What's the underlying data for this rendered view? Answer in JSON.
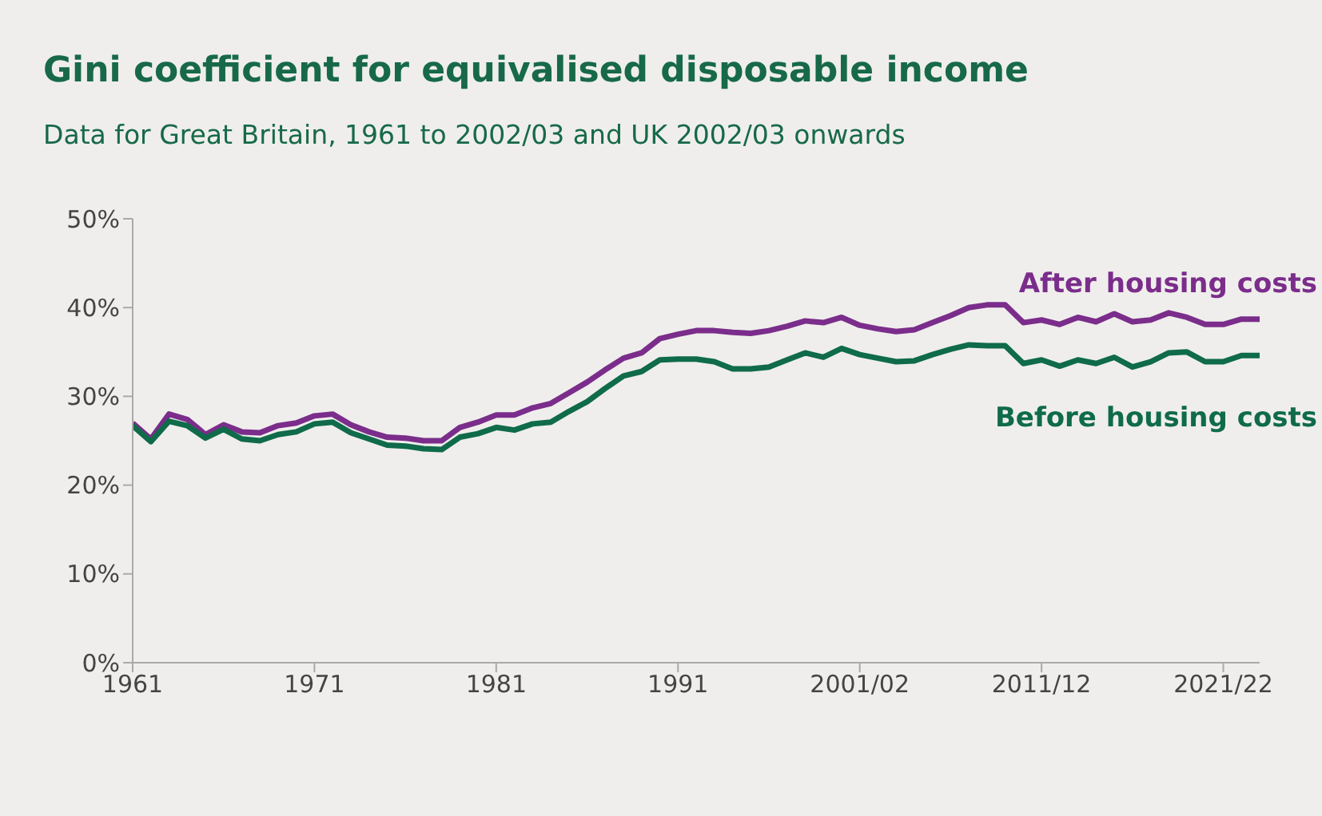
{
  "chart_data": {
    "type": "line",
    "title": "Gini coefficient for equivalised disposable income",
    "subtitle": "Data for Great Britain, 1961 to 2002/03 and UK 2002/03 onwards",
    "categories": [
      "1961",
      null,
      null,
      null,
      null,
      null,
      null,
      null,
      null,
      null,
      "1971",
      null,
      null,
      null,
      null,
      null,
      null,
      null,
      null,
      null,
      "1981",
      null,
      null,
      null,
      null,
      null,
      null,
      null,
      null,
      null,
      "1991",
      null,
      null,
      null,
      null,
      null,
      null,
      null,
      null,
      null,
      "2001/02",
      null,
      null,
      null,
      null,
      null,
      null,
      null,
      null,
      null,
      "2011/12",
      null,
      null,
      null,
      null,
      null,
      null,
      null,
      null,
      null,
      "2021/22",
      null,
      null
    ],
    "series": [
      {
        "name": "After housing costs",
        "color": "#7b2d8b",
        "values": [
          27.0,
          25.2,
          28.0,
          27.4,
          25.7,
          26.8,
          26.0,
          25.9,
          26.7,
          27.0,
          27.8,
          28.0,
          26.8,
          26.0,
          25.4,
          25.3,
          25.0,
          25.0,
          26.5,
          27.1,
          27.9,
          27.9,
          28.7,
          29.2,
          30.4,
          31.6,
          33.0,
          34.3,
          34.9,
          36.5,
          37.0,
          37.4,
          37.4,
          37.2,
          37.1,
          37.4,
          37.9,
          38.5,
          38.3,
          38.9,
          38.0,
          37.6,
          37.3,
          37.5,
          38.3,
          39.1,
          40.0,
          40.3,
          40.3,
          38.3,
          38.6,
          38.1,
          38.9,
          38.4,
          39.3,
          38.4,
          38.6,
          39.4,
          38.9,
          38.1,
          38.1,
          38.7,
          38.7
        ]
      },
      {
        "name": "Before housing costs",
        "color": "#0f6b4a",
        "values": [
          26.7,
          24.9,
          27.2,
          26.7,
          25.3,
          26.3,
          25.2,
          25.0,
          25.7,
          26.0,
          26.9,
          27.1,
          25.9,
          25.2,
          24.5,
          24.4,
          24.1,
          24.0,
          25.4,
          25.8,
          26.5,
          26.2,
          26.9,
          27.1,
          28.3,
          29.4,
          30.9,
          32.3,
          32.8,
          34.1,
          34.2,
          34.2,
          33.9,
          33.1,
          33.1,
          33.3,
          34.1,
          34.9,
          34.4,
          35.4,
          34.7,
          34.3,
          33.9,
          34.0,
          34.7,
          35.3,
          35.8,
          35.7,
          35.7,
          33.7,
          34.1,
          33.4,
          34.1,
          33.7,
          34.4,
          33.3,
          33.9,
          34.9,
          35.0,
          33.9,
          33.9,
          34.6,
          34.6
        ]
      }
    ],
    "ylim": [
      0,
      50
    ],
    "yticks": [
      {
        "value": 0,
        "label": "0%"
      },
      {
        "value": 10,
        "label": "10%"
      },
      {
        "value": 20,
        "label": "20%"
      },
      {
        "value": 30,
        "label": "30%"
      },
      {
        "value": 40,
        "label": "40%"
      },
      {
        "value": 50,
        "label": "50%"
      }
    ],
    "grid": false,
    "marker": "none",
    "line_style": "solid"
  }
}
